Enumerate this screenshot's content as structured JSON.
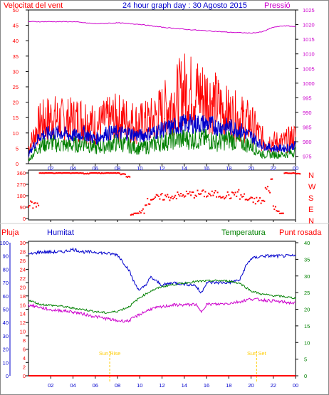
{
  "header": {
    "left_label": "Velocitat del vent",
    "title": "24 hour graph day : 30 Agosto 2015",
    "right_label": "Pressió"
  },
  "panel2": {
    "dir_labels": [
      "N",
      "W",
      "S",
      "E",
      "N"
    ]
  },
  "panel3": {
    "label_pluja": "Pluja",
    "label_humitat": "Humitat",
    "label_temperatura": "Temperatura",
    "label_punt_rosada": "Punt rosada",
    "sunrise_label": "Sun Rise",
    "sunset_label": "Sun Set"
  },
  "colors": {
    "wind_gust": "#ff0000",
    "wind_avg": "#0000cc",
    "wind_low": "#008000",
    "pressure": "#cc00cc",
    "direction": "#ff0000",
    "humidity": "#0000cc",
    "temperature": "#008000",
    "dewpoint": "#cc00cc",
    "rain": "#ff0000",
    "sun_marker": "#ffcc00"
  },
  "chart_data": [
    {
      "type": "line",
      "title": "24 hour graph day : 30 Agosto 2015",
      "x_ticks": [
        "02",
        "04",
        "06",
        "08",
        "10",
        "12",
        "14",
        "16",
        "18",
        "20",
        "22",
        "00"
      ],
      "xlim_hours": [
        0,
        24
      ],
      "y_left_ticks": [
        0,
        5,
        10,
        15,
        20,
        25,
        30,
        35,
        40,
        45,
        50
      ],
      "ylim_left": [
        0,
        50
      ],
      "y_right_ticks": [
        975,
        980,
        985,
        990,
        995,
        1000,
        1005,
        1010,
        1015,
        1020,
        1025
      ],
      "ylim_right": [
        972.5,
        1025
      ],
      "series": [
        {
          "name": "Velocitat del vent",
          "axis": "left",
          "x": [
            0,
            1,
            2,
            3,
            4,
            5,
            6,
            7,
            8,
            9,
            10,
            11,
            12,
            13,
            14,
            15,
            16,
            17,
            18,
            19,
            20,
            21,
            22,
            23,
            24
          ],
          "values": [
            5,
            13,
            15,
            14,
            14,
            15,
            12,
            14,
            15,
            14,
            13,
            14,
            17,
            20,
            24,
            23,
            22,
            19,
            16,
            15,
            13,
            8,
            7,
            7,
            9
          ]
        },
        {
          "axis": "left",
          "x": [
            0,
            1,
            2,
            3,
            4,
            5,
            6,
            7,
            8,
            9,
            10,
            11,
            12,
            13,
            14,
            15,
            16,
            17,
            18,
            19,
            20,
            21,
            22,
            23,
            24
          ],
          "values": [
            3,
            9,
            10,
            10,
            9,
            10,
            8,
            10,
            10,
            10,
            9,
            10,
            11,
            12,
            13,
            13,
            13,
            12,
            12,
            11,
            9,
            6,
            5,
            5,
            6
          ]
        },
        {
          "axis": "left",
          "x": [
            0,
            1,
            2,
            3,
            4,
            5,
            6,
            7,
            8,
            9,
            10,
            11,
            12,
            13,
            14,
            15,
            16,
            17,
            18,
            19,
            20,
            21,
            22,
            23,
            24
          ],
          "values": [
            1,
            6,
            7,
            6,
            6,
            7,
            5,
            6,
            7,
            6,
            5,
            6,
            7,
            8,
            8,
            8,
            8,
            7,
            8,
            7,
            6,
            3,
            3,
            3,
            4
          ]
        },
        {
          "name": "Pressió",
          "axis": "right",
          "x": [
            0,
            2,
            4,
            6,
            8,
            10,
            12,
            14,
            16,
            18,
            20,
            21,
            22,
            23,
            24
          ],
          "values": [
            1021,
            1021,
            1021,
            1020.3,
            1020.6,
            1020.1,
            1019.1,
            1018.4,
            1017.9,
            1017.4,
            1017.1,
            1017.5,
            1019.1,
            1019.6,
            1019.3
          ]
        }
      ]
    },
    {
      "type": "scatter",
      "x_ticks": [
        "02",
        "04",
        "06",
        "08",
        "10",
        "12",
        "14",
        "16",
        "18",
        "20",
        "22",
        "00"
      ],
      "xlim_hours": [
        0,
        24
      ],
      "y_ticks": [
        0,
        90,
        180,
        270,
        360
      ],
      "ylim": [
        0,
        360
      ],
      "series": [
        {
          "x": [
            0,
            0.2,
            0.4,
            1,
            2,
            3,
            4,
            5,
            5.5,
            6,
            6.5,
            7,
            7.5,
            8,
            8.3,
            8.8,
            9.2,
            9.5,
            10,
            10.5,
            11,
            12,
            13,
            14,
            15,
            16,
            17,
            18,
            18.5,
            19,
            19.5,
            20,
            20.5,
            21,
            21.3,
            21.8,
            22,
            22.3,
            22.6,
            23,
            23.5,
            24
          ],
          "values": [
            110,
            110,
            107,
            360,
            360,
            360,
            360,
            355,
            360,
            360,
            358,
            360,
            359,
            360,
            350,
            330,
            30,
            40,
            70,
            130,
            160,
            170,
            180,
            190,
            195,
            190,
            185,
            180,
            200,
            175,
            150,
            140,
            140,
            135,
            230,
            310,
            90,
            60,
            40,
            360,
            358,
            355
          ]
        }
      ]
    },
    {
      "type": "line",
      "x_ticks": [
        "02",
        "04",
        "06",
        "08",
        "10",
        "12",
        "14",
        "16",
        "18",
        "20",
        "22",
        "00"
      ],
      "xlim_hours": [
        0,
        24
      ],
      "y_left_ticks": [
        0,
        10,
        20,
        30,
        40,
        50,
        60,
        70,
        80,
        90,
        100
      ],
      "ylim_left": [
        0,
        100
      ],
      "y_left2_ticks": [
        0,
        2,
        4,
        6,
        8,
        10,
        12,
        14,
        16,
        18,
        20,
        22,
        24,
        26,
        28,
        30
      ],
      "ylim_left2": [
        0,
        30
      ],
      "y_right_ticks": [
        0,
        5,
        10,
        15,
        20,
        25,
        30,
        35,
        40
      ],
      "ylim_right": [
        0,
        40
      ],
      "series": [
        {
          "name": "Pluja",
          "axis": "left2",
          "x": [
            0,
            24
          ],
          "values": [
            0,
            0
          ]
        },
        {
          "name": "Humitat",
          "axis": "left",
          "x": [
            0,
            1,
            2,
            3,
            4,
            5,
            6,
            7,
            8,
            9,
            9.5,
            10,
            10.5,
            11,
            12,
            13,
            14,
            15,
            15.5,
            16,
            17,
            18,
            19,
            19.5,
            20,
            21,
            22,
            23,
            24
          ],
          "values": [
            91,
            93,
            93,
            93,
            95,
            93,
            93,
            92,
            91,
            80,
            70,
            64,
            68,
            74,
            68,
            70,
            69,
            68,
            62,
            70,
            70,
            70,
            72,
            82,
            88,
            90,
            90,
            90,
            90
          ]
        },
        {
          "name": "Temperatura",
          "axis": "right",
          "x": [
            0,
            1,
            2,
            3,
            4,
            5,
            6,
            7,
            8,
            9,
            10,
            11,
            12,
            13,
            14,
            15,
            16,
            17,
            18,
            19,
            20,
            21,
            22,
            23,
            24
          ],
          "values": [
            22.8,
            21.5,
            21.2,
            20.9,
            20.3,
            19.9,
            19.3,
            18.9,
            19.4,
            20.7,
            23.5,
            25.5,
            26.8,
            27.4,
            27.9,
            28.3,
            28.5,
            28.6,
            28.5,
            27.8,
            25.5,
            24.5,
            24.1,
            23.8,
            23.3
          ]
        },
        {
          "name": "Punt rosada",
          "axis": "right",
          "x": [
            0,
            1,
            2,
            3,
            4,
            5,
            6,
            7,
            8,
            9,
            10,
            11,
            12,
            13,
            14,
            15,
            15.5,
            16,
            17,
            18,
            19,
            20,
            21,
            22,
            23,
            24
          ],
          "values": [
            21.3,
            20.6,
            19.8,
            19.6,
            19.2,
            18.5,
            17.8,
            17.2,
            16.5,
            16.5,
            18.5,
            20.1,
            20.7,
            21.3,
            21.3,
            21.5,
            19.2,
            21.5,
            21.5,
            21.8,
            22.3,
            23.1,
            22.8,
            22.5,
            22.1,
            21.8
          ]
        }
      ],
      "sunrise_hour": 7.3,
      "sunset_hour": 20.5
    }
  ]
}
